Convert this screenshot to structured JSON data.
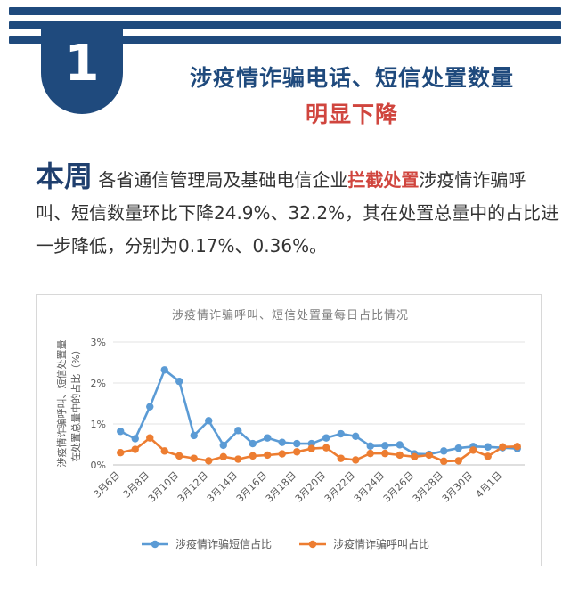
{
  "badge": {
    "number": "1"
  },
  "heading": {
    "line1": "涉疫情诈骗电话、短信处置数量",
    "line2": "明显下降"
  },
  "paragraph": {
    "lead": "本周",
    "part1": "各省通信管理局及基础电信企业",
    "highlight": "拦截处置",
    "part2": "涉疫情诈骗呼叫、短信数量环比下降24.9%、32.2%，其在处置总量中的占比进一步降低，分别为0.17%、0.36%。"
  },
  "colors": {
    "brand": "#1f4a7d",
    "highlight": "#d0453e",
    "sms": "#5b9bd5",
    "call": "#ed7d31"
  },
  "chart_data": {
    "type": "line",
    "title": "涉疫情诈骗呼叫、短信处置量每日占比情况",
    "ylabel": "涉疫情诈骗呼叫、短信处置量在处置总量中的占比（%）",
    "xlabel": "",
    "ylim": [
      0,
      3
    ],
    "yticks": [
      "0%",
      "1%",
      "2%",
      "3%"
    ],
    "xtick_labels": [
      "3月6日",
      "3月8日",
      "3月10日",
      "3月12日",
      "3月14日",
      "3月16日",
      "3月18日",
      "3月20日",
      "3月22日",
      "3月24日",
      "3月26日",
      "3月28日",
      "3月30日",
      "4月1日"
    ],
    "x": [
      "3月6日",
      "3月7日",
      "3月8日",
      "3月9日",
      "3月10日",
      "3月11日",
      "3月12日",
      "3月13日",
      "3月14日",
      "3月15日",
      "3月16日",
      "3月17日",
      "3月18日",
      "3月19日",
      "3月20日",
      "3月21日",
      "3月22日",
      "3月23日",
      "3月24日",
      "3月25日",
      "3月26日",
      "3月27日",
      "3月28日",
      "3月29日",
      "3月30日",
      "3月31日",
      "4月1日",
      "4月2日"
    ],
    "series": [
      {
        "name": "涉疫情诈骗短信占比",
        "values": [
          0.82,
          0.64,
          1.42,
          2.32,
          2.04,
          0.72,
          1.08,
          0.48,
          0.84,
          0.52,
          0.66,
          0.55,
          0.52,
          0.52,
          0.66,
          0.76,
          0.7,
          0.46,
          0.47,
          0.49,
          0.27,
          0.26,
          0.34,
          0.41,
          0.45,
          0.44,
          0.42,
          0.4
        ]
      },
      {
        "name": "涉疫情诈骗呼叫占比",
        "values": [
          0.3,
          0.38,
          0.66,
          0.34,
          0.22,
          0.16,
          0.1,
          0.2,
          0.14,
          0.22,
          0.24,
          0.27,
          0.32,
          0.4,
          0.42,
          0.16,
          0.12,
          0.28,
          0.28,
          0.24,
          0.2,
          0.24,
          0.09,
          0.1,
          0.36,
          0.21,
          0.44,
          0.45
        ]
      }
    ],
    "grid": true,
    "legend": "bottom"
  }
}
